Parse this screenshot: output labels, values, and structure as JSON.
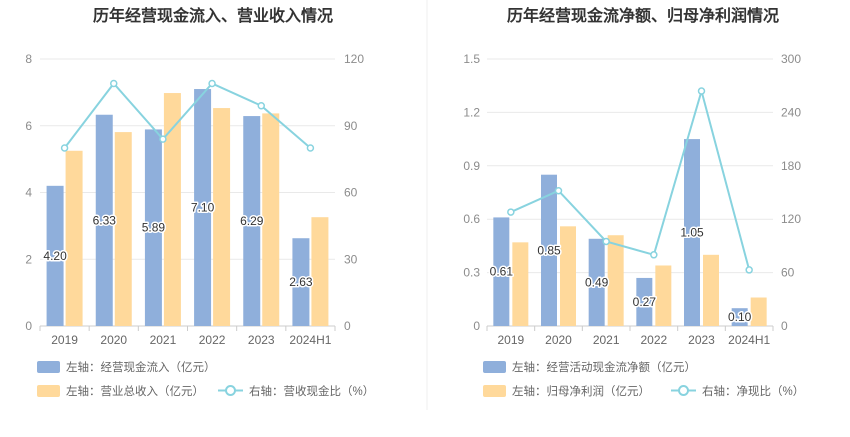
{
  "chart_data": [
    {
      "type": "bar",
      "title": "历年经营现金流入、营业收入情况",
      "categories": [
        "2019",
        "2020",
        "2021",
        "2022",
        "2023",
        "2024H1"
      ],
      "left_axis": {
        "ticks": [
          0,
          2,
          4,
          6,
          8
        ],
        "ylim": [
          0,
          8
        ]
      },
      "right_axis": {
        "ticks": [
          0,
          30,
          60,
          90,
          120
        ],
        "ylim": [
          0,
          120
        ]
      },
      "series": [
        {
          "name": "左轴：经营现金流入（亿元）",
          "type": "bar",
          "axis": "left",
          "color": "#8fafdb",
          "values": [
            4.2,
            6.33,
            5.89,
            7.1,
            6.29,
            2.63
          ],
          "labels": [
            "4.20",
            "6.33",
            "5.89",
            "7.10",
            "6.29",
            "2.63"
          ]
        },
        {
          "name": "左轴：营业总收入（亿元）",
          "type": "bar",
          "axis": "left",
          "color": "#ffd99b",
          "values": [
            5.25,
            5.81,
            6.98,
            6.53,
            6.37,
            3.26
          ]
        },
        {
          "name": "右轴：营收现金比（%）",
          "type": "line",
          "axis": "right",
          "color": "#88d3df",
          "values": [
            80,
            109,
            84,
            109,
            99,
            80
          ]
        }
      ],
      "grid": true,
      "legend": "bottom"
    },
    {
      "type": "bar",
      "title": "历年经营现金流净额、归母净利润情况",
      "categories": [
        "2019",
        "2020",
        "2021",
        "2022",
        "2023",
        "2024H1"
      ],
      "left_axis": {
        "ticks": [
          0,
          0.3,
          0.6,
          0.9,
          1.2,
          1.5
        ],
        "ylim": [
          0,
          1.5
        ]
      },
      "right_axis": {
        "ticks": [
          0,
          60,
          120,
          180,
          240,
          300
        ],
        "ylim": [
          0,
          300
        ]
      },
      "series": [
        {
          "name": "左轴：经营活动现金流净额（亿元）",
          "type": "bar",
          "axis": "left",
          "color": "#8fafdb",
          "values": [
            0.61,
            0.85,
            0.49,
            0.27,
            1.05,
            0.1
          ],
          "labels": [
            "0.61",
            "0.85",
            "0.49",
            "0.27",
            "1.05",
            "0.10"
          ]
        },
        {
          "name": "左轴：归母净利润（亿元）",
          "type": "bar",
          "axis": "left",
          "color": "#ffd99b",
          "values": [
            0.47,
            0.56,
            0.51,
            0.34,
            0.4,
            0.16
          ]
        },
        {
          "name": "右轴：净现比（%）",
          "type": "line",
          "axis": "right",
          "color": "#88d3df",
          "values": [
            128,
            152,
            95,
            80,
            264,
            63
          ]
        }
      ],
      "grid": true,
      "legend": "bottom"
    }
  ]
}
